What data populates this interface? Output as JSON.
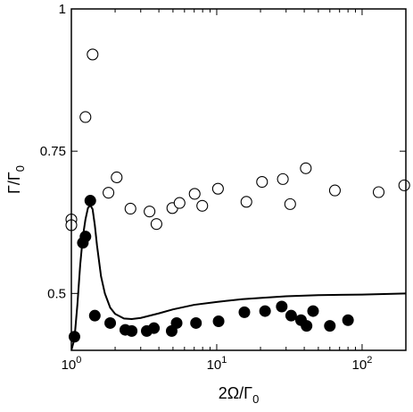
{
  "chart_data": {
    "type": "scatter",
    "title": "",
    "xlabel": "2Ω/Γ",
    "xlabel_sub": "0",
    "ylabel": "Γ/Γ",
    "ylabel_sub": "0",
    "xscale": "log",
    "xlim": [
      1,
      200
    ],
    "ylim": [
      0.4,
      1.0
    ],
    "grid": false,
    "legend": "none",
    "x_ticks": [
      {
        "value": 1,
        "base": "10",
        "exp": "0"
      },
      {
        "value": 10,
        "base": "10",
        "exp": "1"
      },
      {
        "value": 100,
        "base": "10",
        "exp": "2"
      }
    ],
    "y_ticks": [
      {
        "value": 0.5,
        "label": "0.5"
      },
      {
        "value": 0.75,
        "label": "0.75"
      },
      {
        "value": 1.0,
        "label": "1"
      }
    ],
    "series": [
      {
        "style": "open-circle",
        "color": "#000000",
        "points": [
          [
            1.0,
            0.63
          ],
          [
            1.0,
            0.62
          ],
          [
            1.25,
            0.81
          ],
          [
            1.4,
            0.92
          ],
          [
            1.8,
            0.677
          ],
          [
            2.05,
            0.704
          ],
          [
            2.55,
            0.649
          ],
          [
            3.45,
            0.644
          ],
          [
            3.85,
            0.622
          ],
          [
            4.95,
            0.65
          ],
          [
            5.55,
            0.659
          ],
          [
            7.05,
            0.675
          ],
          [
            7.95,
            0.654
          ],
          [
            10.2,
            0.684
          ],
          [
            16.0,
            0.661
          ],
          [
            20.5,
            0.696
          ],
          [
            28.5,
            0.701
          ],
          [
            32.0,
            0.657
          ],
          [
            41.0,
            0.72
          ],
          [
            65.0,
            0.681
          ],
          [
            130.0,
            0.678
          ],
          [
            195.0,
            0.69
          ]
        ]
      },
      {
        "style": "filled-circle",
        "color": "#000000",
        "points": [
          [
            1.05,
            0.424
          ],
          [
            1.2,
            0.589
          ],
          [
            1.25,
            0.6
          ],
          [
            1.35,
            0.663
          ],
          [
            1.45,
            0.461
          ],
          [
            1.85,
            0.448
          ],
          [
            2.35,
            0.436
          ],
          [
            2.6,
            0.434
          ],
          [
            3.3,
            0.434
          ],
          [
            3.7,
            0.439
          ],
          [
            4.9,
            0.434
          ],
          [
            5.3,
            0.448
          ],
          [
            7.2,
            0.448
          ],
          [
            10.3,
            0.451
          ],
          [
            15.5,
            0.467
          ],
          [
            21.5,
            0.469
          ],
          [
            28.0,
            0.477
          ],
          [
            32.5,
            0.461
          ],
          [
            38.0,
            0.453
          ],
          [
            41.5,
            0.443
          ],
          [
            46.0,
            0.469
          ],
          [
            60.0,
            0.443
          ],
          [
            80.0,
            0.453
          ]
        ]
      },
      {
        "style": "line",
        "color": "#000000",
        "points": [
          [
            1.0,
            0.4
          ],
          [
            1.05,
            0.42
          ],
          [
            1.1,
            0.48
          ],
          [
            1.15,
            0.55
          ],
          [
            1.2,
            0.6
          ],
          [
            1.25,
            0.63
          ],
          [
            1.3,
            0.65
          ],
          [
            1.35,
            0.655
          ],
          [
            1.4,
            0.648
          ],
          [
            1.45,
            0.62
          ],
          [
            1.5,
            0.585
          ],
          [
            1.6,
            0.53
          ],
          [
            1.7,
            0.5
          ],
          [
            1.85,
            0.475
          ],
          [
            2.0,
            0.464
          ],
          [
            2.3,
            0.456
          ],
          [
            2.6,
            0.455
          ],
          [
            3.0,
            0.457
          ],
          [
            4.0,
            0.465
          ],
          [
            5.0,
            0.472
          ],
          [
            7.0,
            0.48
          ],
          [
            10.0,
            0.485
          ],
          [
            15.0,
            0.49
          ],
          [
            20.0,
            0.492
          ],
          [
            30.0,
            0.495
          ],
          [
            50.0,
            0.497
          ],
          [
            100.0,
            0.498
          ],
          [
            200.0,
            0.5
          ]
        ]
      }
    ]
  }
}
